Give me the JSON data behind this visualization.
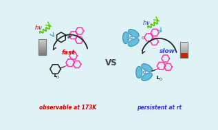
{
  "bg_color": "#dff2f5",
  "label_left": "observable at 173K",
  "label_right": "persistent at rt",
  "label_left_color": "#cc0000",
  "label_right_color": "#3333cc",
  "vs_text": "VS",
  "vs_color": "#444444",
  "hv_color_left": "#cc0000",
  "hv_color_right": "#3333aa",
  "arrow_color": "#222222",
  "fast_text": "fast",
  "fast_color": "#cc0000",
  "slow_text": "slow",
  "slow_color": "#3344cc",
  "green_wave": "#55cc00",
  "cyan_arrow": "#33aadd",
  "molecule_pink": "#ff33aa",
  "molecule_dark": "#222222",
  "molecule_cyan": "#55b8dd",
  "molecule_cyan_edge": "#3388aa",
  "gray_light": "#c0c0c0",
  "gray_dark": "#888888",
  "red_bottom": "#cc2200"
}
